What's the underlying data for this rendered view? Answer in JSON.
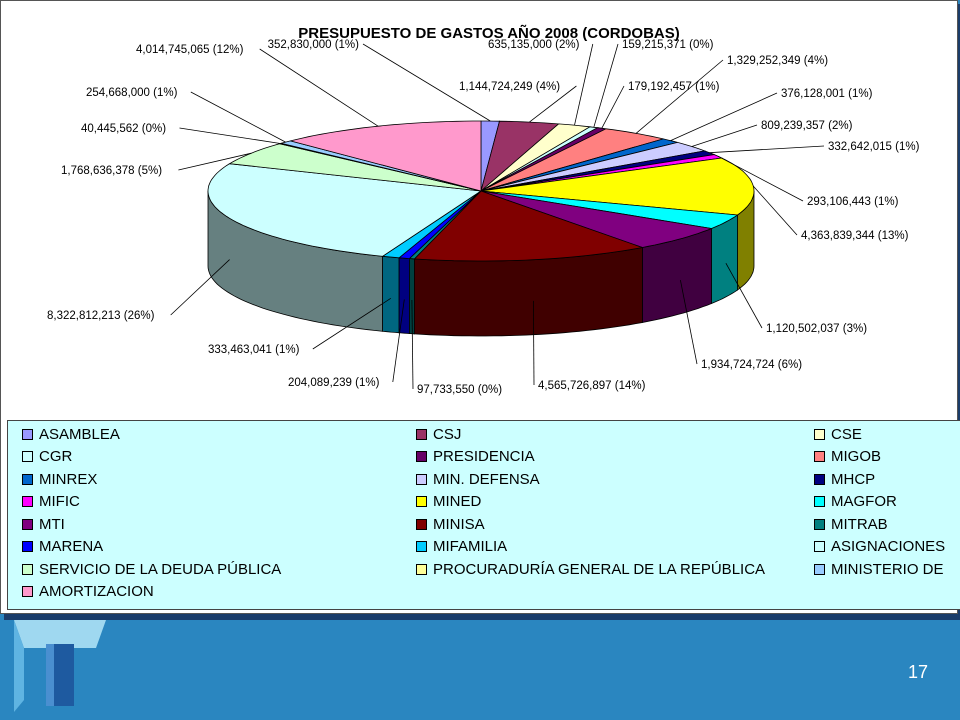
{
  "slide": {
    "page_number": "17"
  },
  "chart_data": {
    "type": "pie",
    "title": "PRESUPUESTO DE GASTOS AÑO 2008 (CORDOBAS)",
    "legend_position": "bottom",
    "slices": [
      {
        "name": "ASAMBLEA",
        "value": 352830000,
        "label": "352,830,000 (1%)",
        "color": "#9999ff"
      },
      {
        "name": "CSJ",
        "value": 1144724249,
        "label": "1,144,724,249 (4%)",
        "color": "#993366"
      },
      {
        "name": "CSE",
        "value": 635135000,
        "label": "635,135,000 (2%)",
        "color": "#ffffcc"
      },
      {
        "name": "CGR",
        "value": 159215371,
        "label": "159,215,371 (0%)",
        "color": "#ccffff"
      },
      {
        "name": "PRESIDENCIA",
        "value": 179192457,
        "label": "179,192,457 (1%)",
        "color": "#660066"
      },
      {
        "name": "MIGOB",
        "value": 1329252349,
        "label": "1,329,252,349 (4%)",
        "color": "#ff8080"
      },
      {
        "name": "MINREX",
        "value": 376128001,
        "label": "376,128,001 (1%)",
        "color": "#0066cc"
      },
      {
        "name": "MIN. DEFENSA",
        "value": 809239357,
        "label": "809,239,357 (2%)",
        "color": "#ccccff"
      },
      {
        "name": "MHCP",
        "value": 332642015,
        "label": "332,642,015 (1%)",
        "color": "#000080"
      },
      {
        "name": "MIFIC",
        "value": 293106443,
        "label": "293,106,443 (1%)",
        "color": "#ff00ff"
      },
      {
        "name": "MINED",
        "value": 4363839344,
        "label": "4,363,839,344 (13%)",
        "color": "#ffff00"
      },
      {
        "name": "MAGFOR",
        "value": 1120502037,
        "label": "1,120,502,037 (3%)",
        "color": "#00ffff"
      },
      {
        "name": "MTI",
        "value": 1934724724,
        "label": "1,934,724,724 (6%)",
        "color": "#800080"
      },
      {
        "name": "MINISA",
        "value": 4565726897,
        "label": "4,565,726,897 (14%)",
        "color": "#800000"
      },
      {
        "name": "MITRAB",
        "value": 97733550,
        "label": "97,733,550 (0%)",
        "color": "#008080"
      },
      {
        "name": "MARENA",
        "value": 204089239,
        "label": "204,089,239 (1%)",
        "color": "#0000ff"
      },
      {
        "name": "MIFAMILIA",
        "value": 333463041,
        "label": "333,463,041 (1%)",
        "color": "#00ccff"
      },
      {
        "name": "ASIGNACIONES",
        "value": 8322812213,
        "label": "8,322,812,213 (26%)",
        "color": "#ccffff"
      },
      {
        "name": "SERVICIO DE LA DEUDA PÚBLICA",
        "value": 1768636378,
        "label": "1,768,636,378 (5%)",
        "color": "#ccffcc"
      },
      {
        "name": "PROCURADURÍA GENERAL DE LA REPÚBLICA",
        "value": 40445562,
        "label": "40,445,562 (0%)",
        "color": "#ffff99"
      },
      {
        "name": "MINISTERIO DE",
        "value": 254668000,
        "label": "254,668,000 (1%)",
        "color": "#99ccff"
      },
      {
        "name": "AMORTIZACION",
        "value": 4014745065,
        "label": "4,014,745,065 (12%)",
        "color": "#ff99cc"
      }
    ]
  }
}
